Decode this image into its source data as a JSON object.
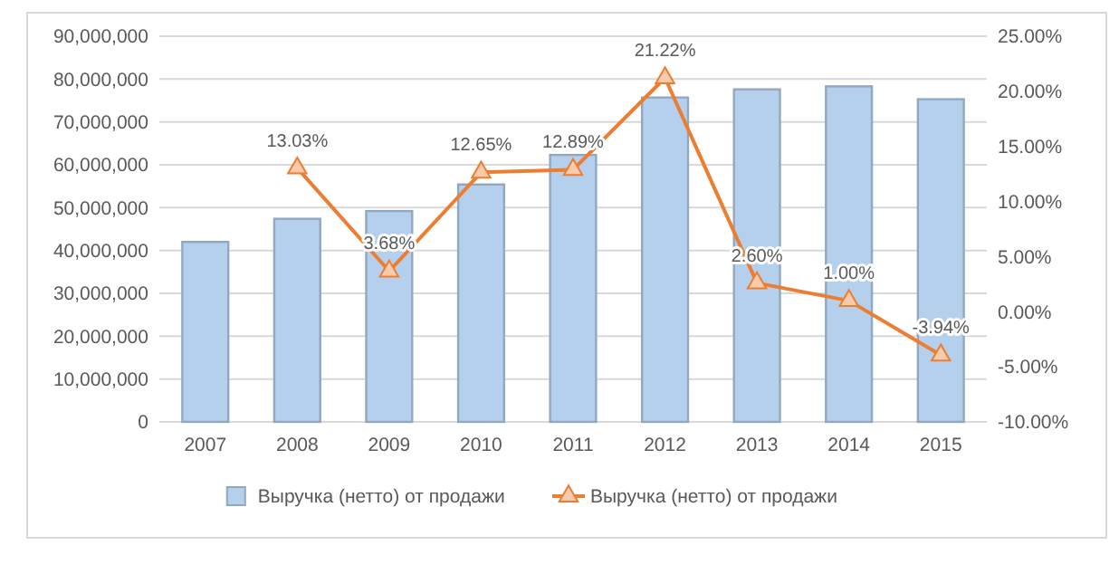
{
  "chart_data": {
    "type": "bar",
    "categories": [
      "2007",
      "2008",
      "2009",
      "2010",
      "2011",
      "2012",
      "2013",
      "2014",
      "2015"
    ],
    "series": [
      {
        "name": "Выручка (нетто) от продажи",
        "color": "#b4d0ec",
        "values": [
          42000000,
          47400000,
          49200000,
          55400000,
          62300000,
          75700000,
          77600000,
          78300000,
          75300000
        ]
      },
      {
        "name": "Выручка (нетто) от продажи",
        "type": "line",
        "axis": "y2",
        "color": "#ed7d31",
        "marker": "triangle",
        "data_labels": true,
        "value_labels": [
          null,
          "13.03%",
          "3.68%",
          "12.65%",
          "12.89%",
          "21.22%",
          "2.60%",
          "1.00%",
          "-3.94%"
        ],
        "values": [
          null,
          13.03,
          3.68,
          12.65,
          12.89,
          21.22,
          2.6,
          1.0,
          -3.94
        ]
      }
    ],
    "ylim": [
      0,
      90000000
    ],
    "yticks": [
      {
        "value": 0,
        "label": "0"
      },
      {
        "value": 10000000,
        "label": "10,000,000"
      },
      {
        "value": 20000000,
        "label": "20,000,000"
      },
      {
        "value": 30000000,
        "label": "30,000,000"
      },
      {
        "value": 40000000,
        "label": "40,000,000"
      },
      {
        "value": 50000000,
        "label": "50,000,000"
      },
      {
        "value": 60000000,
        "label": "60,000,000"
      },
      {
        "value": 70000000,
        "label": "70,000,000"
      },
      {
        "value": 80000000,
        "label": "80,000,000"
      },
      {
        "value": 90000000,
        "label": "90,000,000"
      }
    ],
    "y2lim": [
      -10,
      25
    ],
    "y2ticks": [
      {
        "value": -10,
        "label": "-10.00%"
      },
      {
        "value": -5,
        "label": "-5.00%"
      },
      {
        "value": 0,
        "label": "0.00%"
      },
      {
        "value": 5,
        "label": "5.00%"
      },
      {
        "value": 10,
        "label": "10.00%"
      },
      {
        "value": 15,
        "label": "15.00%"
      },
      {
        "value": 20,
        "label": "20.00%"
      },
      {
        "value": 25,
        "label": "25.00%"
      }
    ],
    "grid": "y",
    "legend": "bottom"
  }
}
